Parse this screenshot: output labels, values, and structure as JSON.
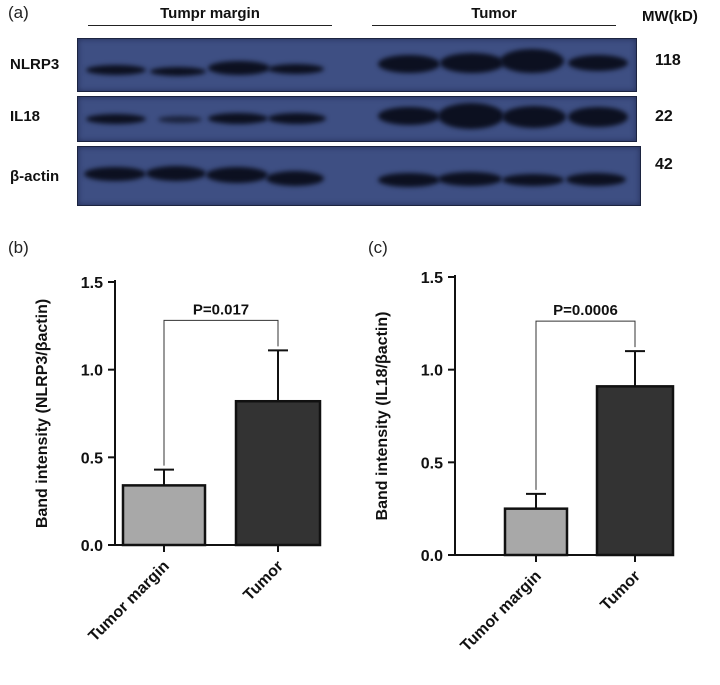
{
  "panel_a": {
    "letter": "(a)",
    "group_left": "Tumpr margin",
    "group_right": "Tumor",
    "mw_header": "MW(kD)",
    "rows": [
      {
        "protein": "NLRP3",
        "mw": "118"
      },
      {
        "protein": "IL18",
        "mw": "22"
      },
      {
        "protein": "β-actin",
        "mw": "42"
      }
    ]
  },
  "chart_data": [
    {
      "panel": "(b)",
      "type": "bar",
      "categories": [
        "Tumor margin",
        "Tumor"
      ],
      "values": [
        0.34,
        0.82
      ],
      "errors": [
        0.09,
        0.29
      ],
      "colors": [
        "#a8a8a8",
        "#333333"
      ],
      "ylabel": "Band intensity (NLRP3/βactin)",
      "xlabel": "",
      "ylim": [
        0,
        1.5
      ],
      "yticks": [
        "0.0",
        "0.5",
        "1.0",
        "1.5"
      ],
      "pvalue": "P=0.017"
    },
    {
      "panel": "(c)",
      "type": "bar",
      "categories": [
        "Tumor margin",
        "Tumor"
      ],
      "values": [
        0.25,
        0.91
      ],
      "errors": [
        0.08,
        0.19
      ],
      "colors": [
        "#a8a8a8",
        "#333333"
      ],
      "ylabel": "Band intensity (IL18/βactin)",
      "xlabel": "",
      "ylim": [
        0,
        1.5
      ],
      "yticks": [
        "0.0",
        "0.5",
        "1.0",
        "1.5"
      ],
      "pvalue": "P=0.0006"
    }
  ]
}
